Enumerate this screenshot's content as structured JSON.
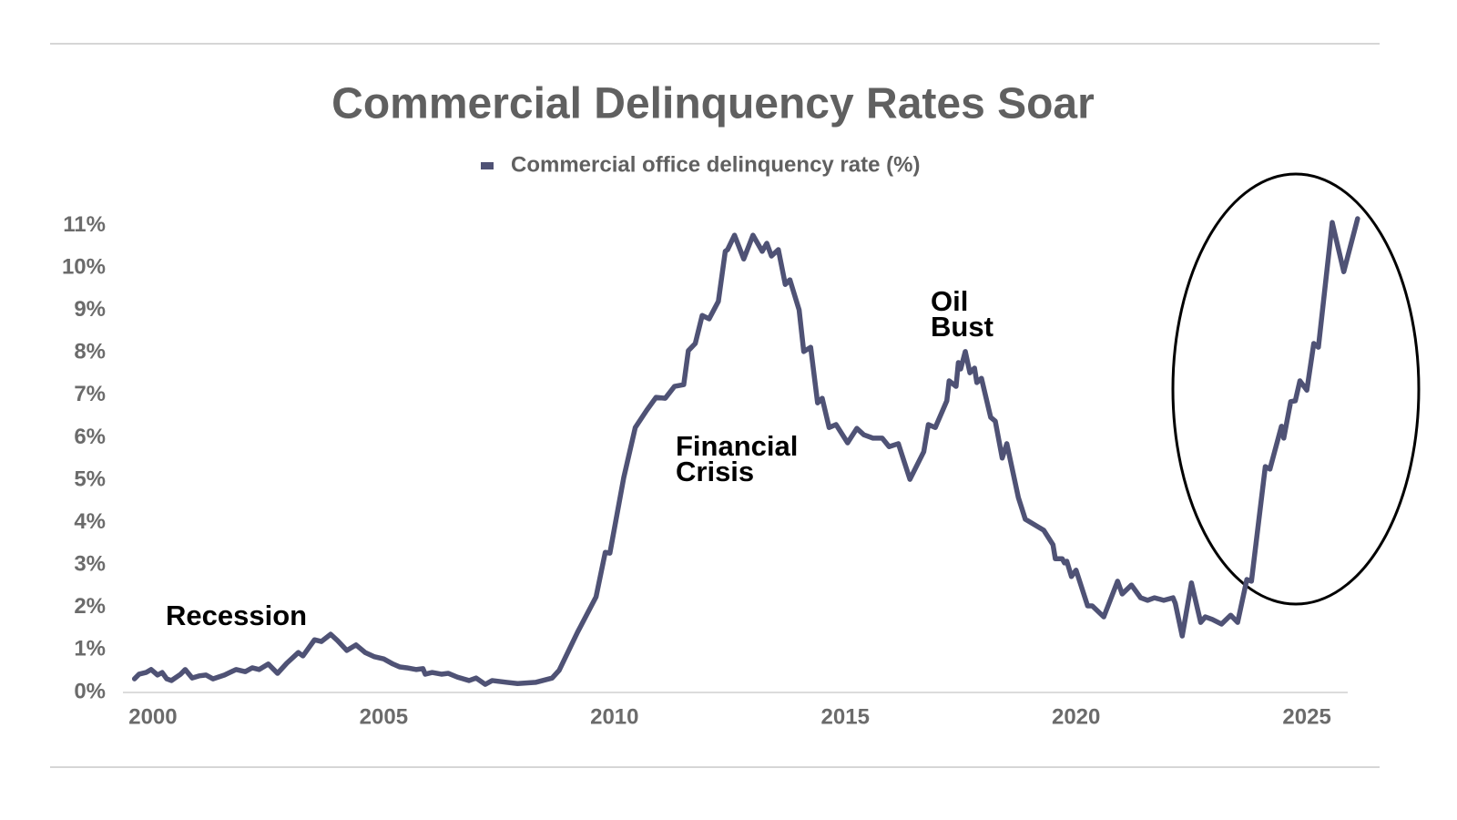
{
  "chart_data": {
    "type": "line",
    "title": "Commercial Delinquency Rates Soar",
    "legend": "top",
    "grid": false,
    "xlim": [
      1999.5,
      2026.3
    ],
    "xticks": [
      2000,
      2005,
      2010,
      2015,
      2020,
      2025
    ],
    "ylim": [
      0,
      11.4
    ],
    "yticks": [
      {
        "value": 0,
        "label": "0%"
      },
      {
        "value": 1,
        "label": "1%"
      },
      {
        "value": 2,
        "label": "2%"
      },
      {
        "value": 3,
        "label": "3%"
      },
      {
        "value": 4,
        "label": "4%"
      },
      {
        "value": 5,
        "label": "5%"
      },
      {
        "value": 6,
        "label": "6%"
      },
      {
        "value": 7,
        "label": "7%"
      },
      {
        "value": 8,
        "label": "8%"
      },
      {
        "value": 9,
        "label": "9%"
      },
      {
        "value": 10,
        "label": "10%"
      },
      {
        "value": 11,
        "label": "11%"
      }
    ],
    "annotations": [
      {
        "lines": [
          "Recession"
        ]
      },
      {
        "lines": [
          "Financial",
          "Crisis"
        ]
      },
      {
        "lines": [
          "Oil",
          "Bust"
        ]
      }
    ],
    "x": [
      1999.6,
      1999.7,
      1999.85,
      1999.96,
      2000.1,
      2000.2,
      2000.3,
      2000.4,
      2000.6,
      2000.7,
      2000.85,
      2001.0,
      2001.15,
      2001.3,
      2001.55,
      2001.8,
      2002.0,
      2002.15,
      2002.3,
      2002.5,
      2002.7,
      2002.9,
      2003.15,
      2003.25,
      2003.5,
      2003.65,
      2003.85,
      2004.0,
      2004.2,
      2004.4,
      2004.6,
      2004.8,
      2005.0,
      2005.2,
      2005.35,
      2005.5,
      2005.7,
      2005.85,
      2005.9,
      2006.05,
      2006.25,
      2006.4,
      2006.6,
      2006.85,
      2007.0,
      2007.2,
      2007.35,
      2007.65,
      2007.9,
      2008.3,
      2008.65,
      2008.8,
      2009.2,
      2009.6,
      2009.8,
      2009.9,
      2010.2,
      2010.45,
      2010.7,
      2010.9,
      2011.1,
      2011.3,
      2011.5,
      2011.6,
      2011.75,
      2011.9,
      2012.05,
      2012.25,
      2012.4,
      2012.45,
      2012.6,
      2012.8,
      2013.0,
      2013.2,
      2013.3,
      2013.4,
      2013.55,
      2013.7,
      2013.8,
      2014.0,
      2014.1,
      2014.25,
      2014.4,
      2014.5,
      2014.65,
      2014.8,
      2015.05,
      2015.25,
      2015.4,
      2015.6,
      2015.8,
      2015.95,
      2016.15,
      2016.4,
      2016.7,
      2016.8,
      2016.95,
      2017.2,
      2017.25,
      2017.4,
      2017.45,
      2017.5,
      2017.6,
      2017.7,
      2017.8,
      2017.85,
      2017.95,
      2018.15,
      2018.25,
      2018.4,
      2018.5,
      2018.75,
      2018.9,
      2019.3,
      2019.5,
      2019.55,
      2019.7,
      2019.75,
      2019.8,
      2019.9,
      2020.0,
      2020.25,
      2020.35,
      2020.6,
      2020.9,
      2021.0,
      2021.2,
      2021.4,
      2021.55,
      2021.7,
      2021.9,
      2022.1,
      2022.15,
      2022.3,
      2022.5,
      2022.7,
      2022.8,
      2022.95,
      2023.15,
      2023.35,
      2023.5,
      2023.7,
      2023.8,
      2024.1,
      2024.2,
      2024.45,
      2024.5,
      2024.65,
      2024.75,
      2024.85,
      2025.0,
      2025.15,
      2025.25,
      2025.55,
      2025.8,
      2026.1
    ],
    "series": [
      {
        "name": "Commercial office delinquency rate (%)",
        "color": "#4f5275",
        "values": [
          0.32,
          0.43,
          0.47,
          0.54,
          0.41,
          0.47,
          0.32,
          0.28,
          0.43,
          0.54,
          0.34,
          0.39,
          0.41,
          0.32,
          0.41,
          0.54,
          0.49,
          0.58,
          0.54,
          0.67,
          0.45,
          0.69,
          0.94,
          0.86,
          1.24,
          1.2,
          1.37,
          1.22,
          0.99,
          1.12,
          0.94,
          0.84,
          0.79,
          0.67,
          0.6,
          0.58,
          0.54,
          0.56,
          0.43,
          0.47,
          0.43,
          0.45,
          0.36,
          0.28,
          0.34,
          0.19,
          0.28,
          0.24,
          0.21,
          0.24,
          0.34,
          0.52,
          1.42,
          2.25,
          3.3,
          3.28,
          5.06,
          6.24,
          6.65,
          6.95,
          6.93,
          7.21,
          7.25,
          8.05,
          8.22,
          8.88,
          8.8,
          9.21,
          10.39,
          10.43,
          10.77,
          10.21,
          10.77,
          10.39,
          10.58,
          10.28,
          10.43,
          9.61,
          9.72,
          9.01,
          8.03,
          8.13,
          6.82,
          6.93,
          6.24,
          6.31,
          5.88,
          6.22,
          6.07,
          5.99,
          5.99,
          5.79,
          5.86,
          5.02,
          5.67,
          6.31,
          6.24,
          6.87,
          7.34,
          7.21,
          7.77,
          7.62,
          8.03,
          7.53,
          7.64,
          7.3,
          7.4,
          6.48,
          6.39,
          5.52,
          5.86,
          4.59,
          4.08,
          3.82,
          3.48,
          3.15,
          3.15,
          3.05,
          3.09,
          2.73,
          2.88,
          2.04,
          2.04,
          1.78,
          2.62,
          2.32,
          2.53,
          2.23,
          2.17,
          2.23,
          2.17,
          2.23,
          2.1,
          1.33,
          2.58,
          1.65,
          1.78,
          1.72,
          1.61,
          1.82,
          1.65,
          2.66,
          2.62,
          5.32,
          5.26,
          6.27,
          5.99,
          6.85,
          6.87,
          7.34,
          7.12,
          8.22,
          8.13,
          11.07,
          9.91,
          11.16
        ]
      }
    ]
  }
}
